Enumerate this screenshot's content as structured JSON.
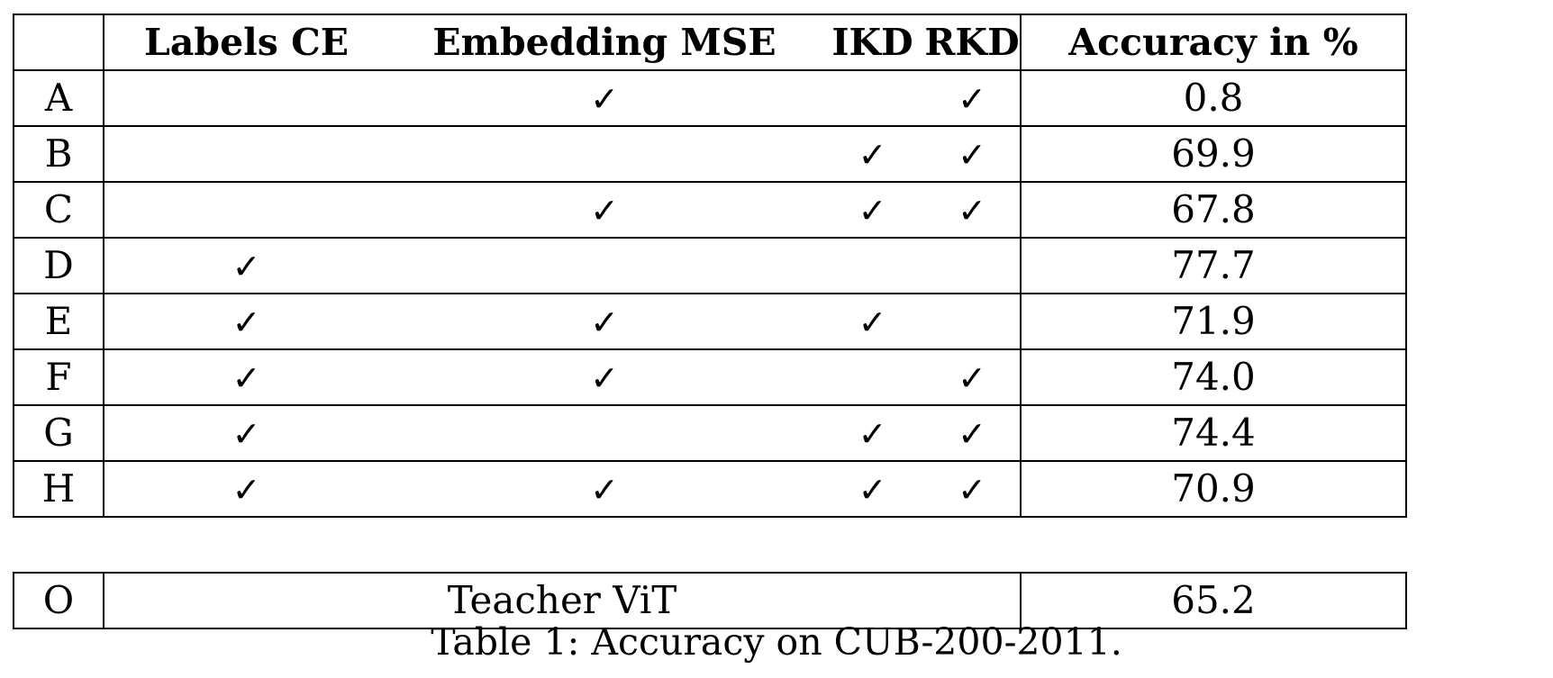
{
  "table": {
    "headers": [
      "",
      "Labels CE",
      "Embedding MSE",
      "IKD",
      "RKD",
      "Accuracy in %"
    ],
    "check_symbol": "✓",
    "rows": [
      {
        "id": "A",
        "labels_ce": false,
        "embedding_mse": true,
        "ikd": false,
        "rkd": true,
        "accuracy": "0.8"
      },
      {
        "id": "B",
        "labels_ce": false,
        "embedding_mse": false,
        "ikd": true,
        "rkd": true,
        "accuracy": "69.9"
      },
      {
        "id": "C",
        "labels_ce": false,
        "embedding_mse": true,
        "ikd": true,
        "rkd": true,
        "accuracy": "67.8"
      },
      {
        "id": "D",
        "labels_ce": true,
        "embedding_mse": false,
        "ikd": false,
        "rkd": false,
        "accuracy": "77.7"
      },
      {
        "id": "E",
        "labels_ce": true,
        "embedding_mse": true,
        "ikd": true,
        "rkd": false,
        "accuracy": "71.9"
      },
      {
        "id": "F",
        "labels_ce": true,
        "embedding_mse": true,
        "ikd": false,
        "rkd": true,
        "accuracy": "74.0"
      },
      {
        "id": "G",
        "labels_ce": true,
        "embedding_mse": false,
        "ikd": true,
        "rkd": true,
        "accuracy": "74.4"
      },
      {
        "id": "H",
        "labels_ce": true,
        "embedding_mse": true,
        "ikd": true,
        "rkd": true,
        "accuracy": "70.9"
      }
    ],
    "baseline": {
      "id": "O",
      "label": "Teacher ViT",
      "accuracy": "65.2"
    }
  },
  "caption": "Table 1: Accuracy on CUB-200-2011."
}
